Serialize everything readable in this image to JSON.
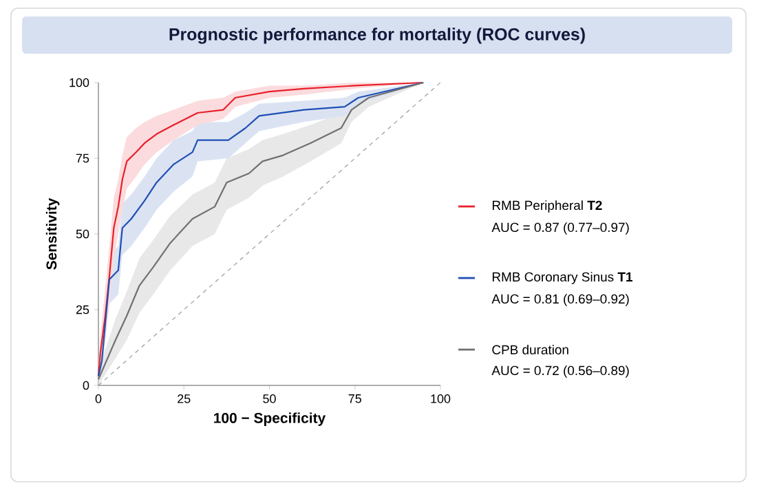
{
  "chart_data": {
    "type": "line",
    "title": "Prognostic performance for mortality (ROC curves)",
    "xlabel": "100 − Specificity",
    "ylabel": "Sensitivity",
    "xlim": [
      0,
      100
    ],
    "ylim": [
      0,
      100
    ],
    "xticks": [
      0,
      25,
      50,
      75,
      100
    ],
    "yticks": [
      0,
      25,
      50,
      75,
      100
    ],
    "legend": "right",
    "marker": "none",
    "annotations": [
      "AUC = 0.87 (0.77–0.97)",
      "AUC = 0.81 (0.69–0.92)",
      "AUC = 0.72 (0.56–0.89)"
    ],
    "series": [
      {
        "name": "RMB Peripheral **T2**",
        "color": "#e8202a",
        "x": [
          0,
          0.6,
          2,
          3.2,
          4.5,
          5.8,
          7,
          8.3,
          11,
          13.5,
          17,
          22,
          29,
          36.5,
          40,
          50,
          60,
          75,
          95
        ],
        "values": [
          3,
          11,
          23,
          36,
          52,
          59,
          68,
          74,
          77,
          80,
          83,
          86,
          90,
          91,
          95,
          97,
          98,
          99,
          100
        ],
        "lower": [
          1,
          6,
          15,
          27,
          42,
          50,
          58,
          65,
          69,
          73,
          77,
          81,
          86,
          88,
          92,
          95,
          96,
          98,
          100
        ],
        "upper": [
          6,
          17,
          32,
          46,
          62,
          68,
          76,
          82,
          85,
          87,
          89,
          91,
          94,
          95,
          97,
          99,
          99,
          100,
          100
        ]
      },
      {
        "name": "RMB Coronary Sinus **T1**",
        "color": "#1f4fb4",
        "x": [
          0,
          1,
          3.2,
          5.8,
          7,
          9.6,
          13.5,
          17,
          22,
          27.5,
          29,
          38,
          43,
          47,
          60,
          72,
          76,
          95
        ],
        "values": [
          3,
          8,
          35,
          38,
          52,
          55,
          61,
          67,
          73,
          77,
          81,
          81,
          85,
          89,
          91,
          92,
          95,
          100
        ],
        "lower": [
          1,
          4,
          27,
          30,
          43,
          46,
          52,
          58,
          64,
          69,
          74,
          75,
          80,
          84,
          87,
          89,
          93,
          100
        ],
        "upper": [
          6,
          13,
          43,
          46,
          60,
          63,
          69,
          75,
          81,
          84,
          87,
          87,
          90,
          93,
          94,
          95,
          97,
          100
        ]
      },
      {
        "name": "CPB duration",
        "color": "#707070",
        "x": [
          0,
          5,
          8.3,
          12,
          16,
          21,
          27.5,
          34,
          37.5,
          44,
          48,
          54,
          62,
          71,
          74,
          79,
          95
        ],
        "values": [
          2,
          15,
          23,
          33,
          39,
          47,
          55,
          59,
          67,
          70,
          74,
          76,
          80,
          85,
          91,
          95,
          100
        ],
        "lower": [
          0,
          9,
          15,
          24,
          30,
          38,
          46,
          50,
          58,
          62,
          66,
          69,
          74,
          80,
          87,
          92,
          100
        ],
        "upper": [
          5,
          22,
          31,
          42,
          48,
          56,
          63,
          67,
          75,
          78,
          81,
          83,
          86,
          90,
          94,
          97,
          100
        ]
      },
      {
        "type": "line",
        "color": "#9a9a9a",
        "line_style": "dashed",
        "x": [
          0,
          100
        ],
        "values": [
          0,
          100
        ]
      }
    ]
  }
}
